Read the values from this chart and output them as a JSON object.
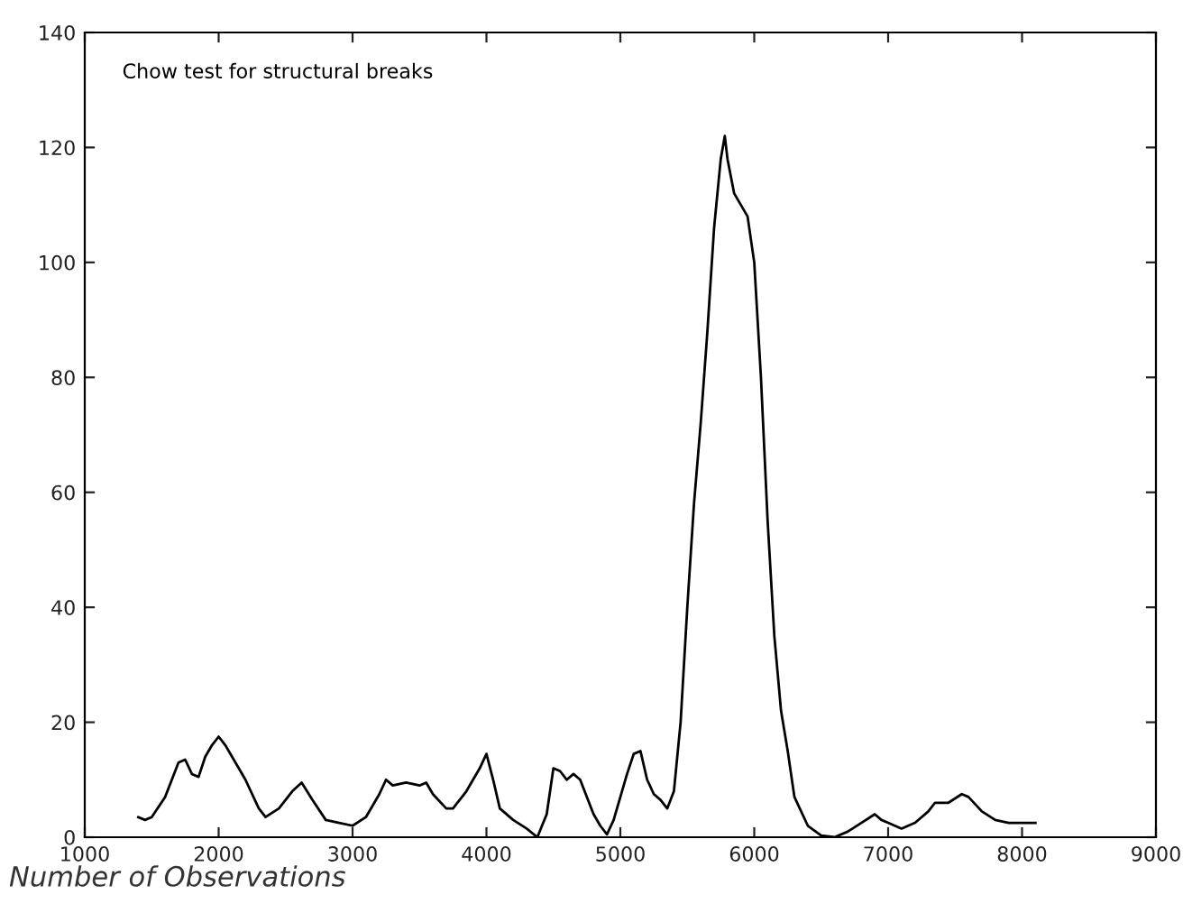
{
  "chart_data": {
    "type": "line",
    "xlabel": "Number of Observations",
    "annotations": [
      "Chow test for structural breaks"
    ],
    "series": [
      {
        "color": "#000000",
        "x": [
          1400,
          1450,
          1500,
          1600,
          1700,
          1750,
          1800,
          1850,
          1900,
          1950,
          2000,
          2050,
          2100,
          2200,
          2300,
          2350,
          2450,
          2550,
          2620,
          2700,
          2800,
          2900,
          3000,
          3100,
          3200,
          3250,
          3300,
          3400,
          3500,
          3550,
          3600,
          3700,
          3750,
          3850,
          3950,
          4000,
          4050,
          4100,
          4200,
          4300,
          4380,
          4450,
          4500,
          4550,
          4600,
          4650,
          4700,
          4750,
          4800,
          4850,
          4900,
          4950,
          5000,
          5050,
          5100,
          5150,
          5200,
          5250,
          5300,
          5350,
          5400,
          5450,
          5500,
          5550,
          5600,
          5650,
          5700,
          5750,
          5780,
          5800,
          5850,
          5900,
          5950,
          6000,
          6050,
          6100,
          6150,
          6200,
          6250,
          6300,
          6400,
          6500,
          6600,
          6700,
          6800,
          6900,
          6950,
          7000,
          7100,
          7200,
          7300,
          7350,
          7450,
          7550,
          7600,
          7700,
          7800,
          7900,
          8000,
          8100
        ],
        "values": [
          3.5,
          3,
          3.5,
          7,
          13,
          13.5,
          11,
          10.5,
          14,
          16,
          17.5,
          16,
          14,
          10,
          5,
          3.5,
          5,
          8,
          9.5,
          6.5,
          3,
          2.5,
          2,
          3.5,
          7.5,
          10,
          9,
          9.5,
          9,
          9.5,
          7.5,
          5,
          5,
          8,
          12,
          14.5,
          10,
          5,
          3,
          1.5,
          0,
          4,
          12,
          11.5,
          10,
          11,
          10,
          7,
          4,
          2,
          0.5,
          3,
          7,
          11,
          14.5,
          15,
          10,
          7.5,
          6.5,
          5,
          8,
          20,
          40,
          58,
          72,
          88,
          106,
          118,
          122,
          118,
          112,
          110,
          108,
          100,
          80,
          55,
          35,
          22,
          15,
          7,
          2,
          0.3,
          0,
          1,
          2.5,
          4,
          3,
          2.5,
          1.5,
          2.5,
          4.5,
          6,
          6,
          7.5,
          7,
          4.5,
          3,
          2.5,
          2.5,
          2.5
        ]
      }
    ],
    "xlim": [
      1000,
      9000
    ],
    "xticks": [
      1000,
      2000,
      3000,
      4000,
      5000,
      6000,
      7000,
      8000,
      9000
    ],
    "ylim": [
      0,
      140
    ],
    "yticks": [
      0,
      20,
      40,
      60,
      80,
      100,
      120,
      140
    ],
    "grid": false,
    "legend": false,
    "marker": "none",
    "line_style": "solid"
  }
}
